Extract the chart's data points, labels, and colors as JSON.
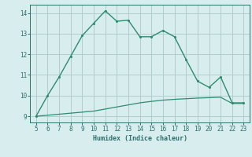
{
  "xlabel": "Humidex (Indice chaleur)",
  "x_main": [
    5,
    6,
    7,
    8,
    9,
    10,
    11,
    12,
    13,
    14,
    15,
    16,
    17,
    18,
    19,
    20,
    21,
    22,
    23
  ],
  "y_main": [
    9.0,
    10.0,
    10.9,
    11.9,
    12.9,
    13.5,
    14.1,
    13.6,
    13.65,
    12.85,
    12.85,
    13.15,
    12.85,
    11.75,
    10.7,
    10.4,
    10.9,
    9.65,
    9.65
  ],
  "x_second": [
    5,
    6,
    7,
    8,
    9,
    10,
    11,
    12,
    13,
    14,
    15,
    16,
    17,
    18,
    19,
    20,
    21,
    22,
    23
  ],
  "y_second": [
    9.0,
    9.05,
    9.1,
    9.15,
    9.2,
    9.25,
    9.35,
    9.45,
    9.55,
    9.65,
    9.72,
    9.78,
    9.82,
    9.85,
    9.88,
    9.9,
    9.92,
    9.62,
    9.62
  ],
  "line_color": "#2e8b6e",
  "bg_color": "#d8eeee",
  "grid_color": "#b0cccc",
  "tick_color": "#2e6e6e",
  "xlim": [
    4.5,
    23.5
  ],
  "ylim": [
    8.7,
    14.4
  ],
  "yticks": [
    9,
    10,
    11,
    12,
    13,
    14
  ],
  "xticks": [
    5,
    6,
    7,
    8,
    9,
    10,
    11,
    12,
    13,
    14,
    15,
    16,
    17,
    18,
    19,
    20,
    21,
    22,
    23
  ]
}
